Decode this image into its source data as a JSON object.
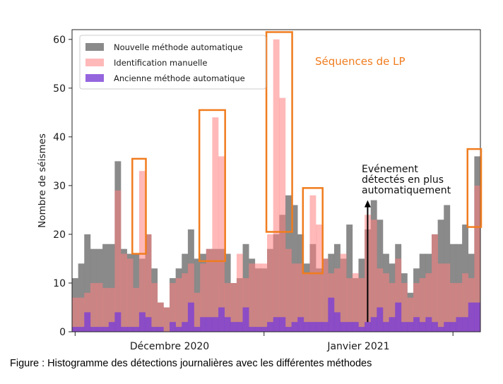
{
  "chart_data": {
    "type": "bar",
    "stacked": false,
    "overlaid": true,
    "ylabel": "Nombre de séismes",
    "ylim": [
      0,
      62
    ],
    "yticks": [
      "0",
      "10",
      "20",
      "30",
      "40",
      "50",
      "60"
    ],
    "xticks": [
      "Décembre 2020",
      "Janvier 2021"
    ],
    "legend": {
      "placement": "top-left",
      "entries": [
        "Nouvelle méthode automatique",
        "Identification manuelle",
        "Ancienne méthode automatique"
      ]
    },
    "series": [
      {
        "name": "Nouvelle méthode automatique",
        "color": "#808080",
        "values": [
          11,
          14,
          20,
          17,
          17,
          18,
          18,
          35,
          17,
          16,
          16,
          15,
          20,
          13,
          6,
          5,
          11,
          13,
          16,
          21,
          15,
          16,
          17,
          17,
          17,
          16,
          10,
          11,
          18,
          15,
          13,
          13,
          17,
          20,
          24,
          28,
          26,
          20,
          14,
          18,
          13,
          15,
          16,
          18,
          15,
          22,
          11,
          15,
          21,
          27,
          23,
          16,
          14,
          18,
          12,
          8,
          13,
          16,
          16,
          20,
          23,
          26,
          18,
          18,
          22,
          16,
          36
        ],
        "note": "total daily detections; overlaid behind manual"
      },
      {
        "name": "Identification manuelle",
        "color": "#ff8080",
        "values": [
          7,
          7,
          8,
          10,
          10,
          9,
          9,
          29,
          16,
          15,
          9,
          33,
          20,
          10,
          6,
          5,
          10,
          11,
          12,
          14,
          8,
          14,
          17,
          44,
          36,
          10,
          10,
          16,
          11,
          14,
          14,
          14,
          20,
          60,
          48,
          17,
          14,
          14,
          12,
          28,
          22,
          15,
          12,
          13,
          16,
          11,
          12,
          11,
          24,
          23,
          13,
          12,
          10,
          15,
          10,
          7,
          10,
          11,
          12,
          20,
          14,
          14,
          10,
          10,
          12,
          11,
          30
        ]
      },
      {
        "name": "Ancienne méthode automatique",
        "color": "#7a3fd6",
        "values": [
          1,
          1,
          4,
          1,
          1,
          1,
          2,
          4,
          1,
          1,
          1,
          4,
          3,
          1,
          1,
          0,
          2,
          1,
          2,
          6,
          1,
          3,
          3,
          3,
          5,
          3,
          2,
          2,
          5,
          1,
          1,
          1,
          2,
          3,
          3,
          1,
          2,
          3,
          2,
          2,
          2,
          2,
          7,
          4,
          2,
          2,
          2,
          1,
          2,
          3,
          5,
          2,
          3,
          6,
          2,
          2,
          3,
          2,
          3,
          2,
          1,
          2,
          2,
          3,
          3,
          6,
          6
        ]
      }
    ],
    "highlights": [
      {
        "from_day": 11,
        "to_day": 12,
        "y_from": 16,
        "y_to": 35.5
      },
      {
        "from_day": 22,
        "to_day": 25,
        "y_from": 14.5,
        "y_to": 45.5
      },
      {
        "from_day": 33,
        "to_day": 36,
        "y_from": 20.5,
        "y_to": 61.5
      },
      {
        "from_day": 39,
        "to_day": 41,
        "y_from": 12,
        "y_to": 29.5
      },
      {
        "from_day": 66,
        "to_day": 67,
        "y_from": 21.5,
        "y_to": 37.5
      }
    ],
    "annotations": {
      "lp_label": "Séquences de LP",
      "event_label_lines": [
        "Evénement",
        "détectés en plus",
        "automatiquement"
      ],
      "arrow_day": 49,
      "arrow_from": 2,
      "arrow_to": 27
    }
  },
  "caption": "Figure : Histogramme des détections journalières avec les différentes méthodes"
}
